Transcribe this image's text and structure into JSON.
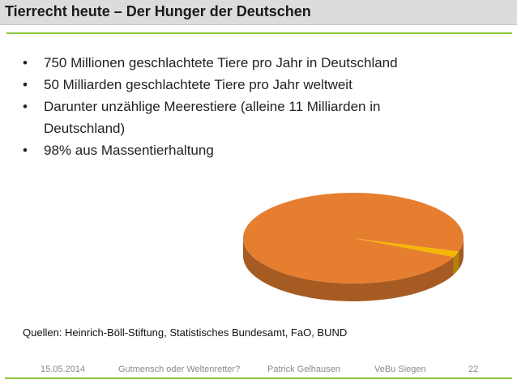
{
  "title": "Tierrecht heute – Der Hunger der Deutschen",
  "bullets": [
    "750 Millionen geschlachtete Tiere pro Jahr in Deutschland",
    "50 Milliarden geschlachtete Tiere pro Jahr weltweit",
    "Darunter unzählige Meerestiere (alleine 11 Milliarden in Deutschland)",
    "98% aus Massentierhaltung"
  ],
  "bullet_symbol": "•",
  "sources": "Quellen: Heinrich-Böll-Stiftung, Statistisches Bundesamt, FaO, BUND",
  "footer": {
    "date": "15.05.2014",
    "talk": "Gutmensch oder Weltenretter?",
    "author": "Patrick Gelhausen",
    "venue": "VeBu Siegen",
    "page": "22"
  },
  "chart_data": {
    "type": "pie",
    "slices": [
      {
        "value": 98,
        "color": "#e67e30"
      },
      {
        "value": 2,
        "color": "#f5b800"
      }
    ]
  },
  "colors": {
    "accent_green": "#8dc63f",
    "title_bar": "#dcdcdc",
    "pie_main": "#e67e30",
    "pie_small": "#f5b800"
  }
}
